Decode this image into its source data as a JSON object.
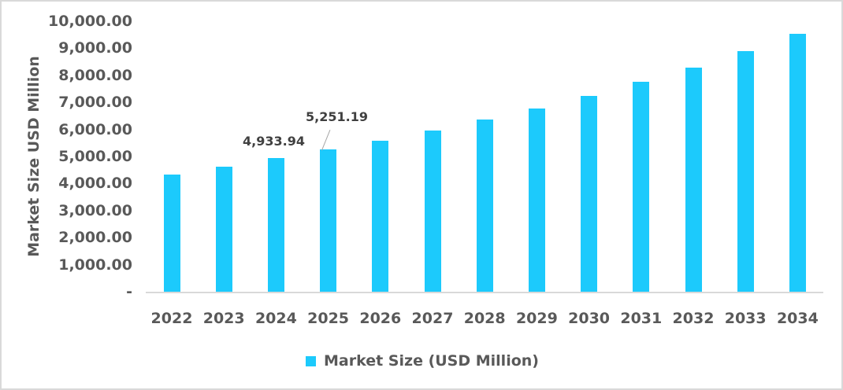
{
  "chart_data": {
    "type": "bar",
    "title": "",
    "xlabel": "",
    "ylabel": "Market Size USD Million",
    "ylim": [
      0,
      10000
    ],
    "yticks": [
      "-",
      "1,000.00",
      "2,000.00",
      "3,000.00",
      "4,000.00",
      "5,000.00",
      "6,000.00",
      "7,000.00",
      "8,000.00",
      "9,000.00",
      "10,000.00"
    ],
    "categories": [
      "2022",
      "2023",
      "2024",
      "2025",
      "2026",
      "2027",
      "2028",
      "2029",
      "2030",
      "2031",
      "2032",
      "2033",
      "2034"
    ],
    "series": [
      {
        "name": "Market Size (USD Million)",
        "color": "#1ccafc",
        "values": [
          4330,
          4620,
          4933.94,
          5251.19,
          5580,
          5960,
          6370,
          6770,
          7240,
          7760,
          8290,
          8900,
          9540
        ]
      }
    ],
    "annotations": [
      {
        "category": "2024",
        "label": "4,933.94"
      },
      {
        "category": "2025",
        "label": "5,251.19"
      }
    ],
    "legend": {
      "position": "bottom",
      "entries": [
        "Market Size (USD Million)"
      ]
    },
    "grid": false
  }
}
